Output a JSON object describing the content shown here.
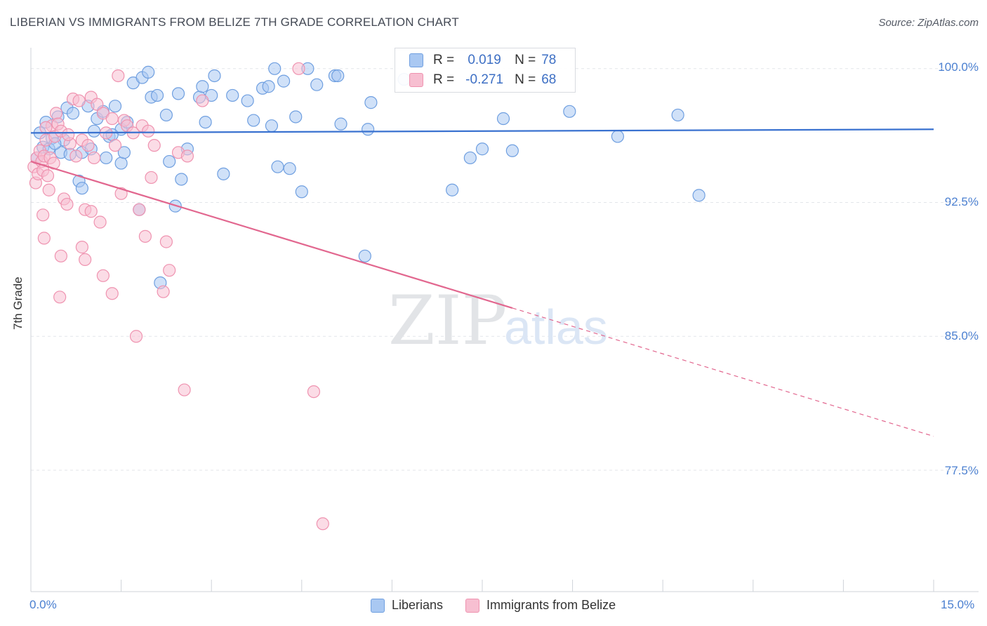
{
  "title": "LIBERIAN VS IMMIGRANTS FROM BELIZE 7TH GRADE CORRELATION CHART",
  "source": "Source: ZipAtlas.com",
  "watermark": {
    "zip": "ZIP",
    "atlas": "atlas"
  },
  "legend": {
    "r_label": "R =",
    "n_label": "N =",
    "rows": [
      {
        "r": "0.019",
        "n": "78",
        "color": "#a9c8f2"
      },
      {
        "r": "-0.271",
        "n": "68",
        "color": "#f7bfd1"
      }
    ]
  },
  "bottom_legend": [
    "Liberians",
    "Immigrants from Belize"
  ],
  "colors": {
    "blue_line": "#3a72d0",
    "pink_line": "#e2678f",
    "tick_text": "#4a7fd0"
  },
  "chart_data": {
    "type": "scatter",
    "title": "LIBERIAN VS IMMIGRANTS FROM BELIZE 7TH GRADE CORRELATION CHART",
    "ylabel": "7th Grade",
    "xlabel": "",
    "x_ticks": [
      "0.0%",
      "15.0%"
    ],
    "y_ticks": [
      "100.0%",
      "92.5%",
      "85.0%",
      "77.5%"
    ],
    "xlim": [
      0,
      15
    ],
    "ylim": [
      70.5,
      100.7
    ],
    "grid": true,
    "series": [
      {
        "name": "Liberians",
        "color": "#a9c8f2",
        "stroke": "#6f9fe0",
        "trend": {
          "x0": 0,
          "y0": 96.4,
          "x1": 15,
          "y1": 96.6,
          "solid_until": 15
        },
        "points": [
          [
            0.15,
            96.4
          ],
          [
            0.25,
            97.0
          ],
          [
            0.2,
            95.6
          ],
          [
            0.35,
            96.1
          ],
          [
            0.45,
            97.3
          ],
          [
            0.55,
            96.0
          ],
          [
            0.6,
            97.8
          ],
          [
            0.7,
            97.5
          ],
          [
            0.85,
            95.3
          ],
          [
            0.95,
            97.9
          ],
          [
            1.1,
            97.2
          ],
          [
            1.2,
            97.6
          ],
          [
            1.3,
            96.2
          ],
          [
            1.4,
            97.9
          ],
          [
            1.5,
            96.6
          ],
          [
            1.6,
            97.0
          ],
          [
            1.7,
            99.2
          ],
          [
            1.85,
            99.5
          ],
          [
            1.95,
            99.8
          ],
          [
            2.0,
            98.4
          ],
          [
            2.1,
            98.5
          ],
          [
            2.25,
            97.4
          ],
          [
            2.3,
            94.8
          ],
          [
            2.4,
            92.3
          ],
          [
            2.45,
            98.6
          ],
          [
            2.5,
            93.8
          ],
          [
            2.6,
            95.5
          ],
          [
            2.8,
            98.4
          ],
          [
            2.85,
            99.0
          ],
          [
            2.9,
            97.0
          ],
          [
            3.0,
            98.5
          ],
          [
            3.05,
            99.6
          ],
          [
            3.2,
            94.1
          ],
          [
            3.35,
            98.5
          ],
          [
            3.6,
            98.2
          ],
          [
            3.7,
            97.1
          ],
          [
            3.85,
            98.9
          ],
          [
            3.95,
            99.0
          ],
          [
            4.0,
            96.8
          ],
          [
            4.05,
            100.0
          ],
          [
            4.1,
            94.5
          ],
          [
            4.2,
            99.3
          ],
          [
            4.3,
            94.4
          ],
          [
            4.4,
            97.3
          ],
          [
            4.5,
            93.1
          ],
          [
            4.6,
            100.0
          ],
          [
            4.75,
            99.1
          ],
          [
            5.05,
            99.6
          ],
          [
            5.1,
            99.6
          ],
          [
            5.15,
            96.9
          ],
          [
            5.55,
            89.5
          ],
          [
            5.6,
            96.6
          ],
          [
            5.65,
            98.1
          ],
          [
            6.2,
            99.4
          ],
          [
            7.0,
            93.2
          ],
          [
            7.3,
            95.0
          ],
          [
            7.5,
            95.5
          ],
          [
            7.85,
            97.2
          ],
          [
            8.0,
            95.4
          ],
          [
            8.95,
            97.6
          ],
          [
            9.75,
            96.2
          ],
          [
            10.75,
            97.4
          ],
          [
            11.1,
            92.9
          ],
          [
            0.3,
            95.5
          ],
          [
            0.5,
            95.3
          ],
          [
            0.8,
            93.7
          ],
          [
            0.85,
            93.3
          ],
          [
            1.0,
            95.5
          ],
          [
            1.05,
            96.5
          ],
          [
            1.25,
            95.0
          ],
          [
            1.35,
            96.3
          ],
          [
            1.5,
            94.7
          ],
          [
            1.8,
            92.1
          ],
          [
            2.15,
            88.0
          ],
          [
            0.1,
            95.0
          ],
          [
            0.4,
            95.8
          ],
          [
            0.65,
            95.2
          ],
          [
            1.55,
            95.3
          ]
        ]
      },
      {
        "name": "Immigrants from Belize",
        "color": "#f7bfd1",
        "stroke": "#ef93b0",
        "trend": {
          "x0": 0,
          "y0": 94.8,
          "x1": 15,
          "y1": 79.4,
          "solid_until": 8.0
        },
        "points": [
          [
            0.05,
            94.5
          ],
          [
            0.08,
            93.6
          ],
          [
            0.1,
            95.0
          ],
          [
            0.12,
            94.1
          ],
          [
            0.15,
            95.4
          ],
          [
            0.18,
            94.8
          ],
          [
            0.2,
            94.3
          ],
          [
            0.22,
            95.1
          ],
          [
            0.25,
            96.0
          ],
          [
            0.28,
            94.0
          ],
          [
            0.3,
            93.2
          ],
          [
            0.32,
            95.0
          ],
          [
            0.35,
            96.8
          ],
          [
            0.38,
            94.7
          ],
          [
            0.4,
            96.2
          ],
          [
            0.42,
            97.5
          ],
          [
            0.45,
            96.9
          ],
          [
            0.5,
            96.5
          ],
          [
            0.55,
            92.7
          ],
          [
            0.6,
            92.4
          ],
          [
            0.65,
            95.8
          ],
          [
            0.7,
            98.3
          ],
          [
            0.75,
            95.1
          ],
          [
            0.8,
            98.2
          ],
          [
            0.85,
            96.0
          ],
          [
            0.9,
            92.1
          ],
          [
            0.95,
            95.7
          ],
          [
            1.0,
            98.4
          ],
          [
            1.05,
            95.0
          ],
          [
            1.1,
            98.0
          ],
          [
            1.15,
            91.4
          ],
          [
            1.2,
            97.5
          ],
          [
            1.25,
            96.4
          ],
          [
            1.35,
            97.2
          ],
          [
            1.4,
            95.7
          ],
          [
            1.45,
            99.6
          ],
          [
            1.5,
            93.0
          ],
          [
            1.55,
            97.1
          ],
          [
            1.6,
            96.8
          ],
          [
            1.7,
            96.4
          ],
          [
            1.75,
            85.0
          ],
          [
            1.8,
            92.1
          ],
          [
            1.85,
            96.8
          ],
          [
            1.9,
            90.6
          ],
          [
            1.95,
            96.5
          ],
          [
            2.0,
            93.9
          ],
          [
            2.05,
            95.7
          ],
          [
            2.2,
            87.5
          ],
          [
            2.25,
            90.3
          ],
          [
            2.3,
            88.7
          ],
          [
            2.45,
            95.3
          ],
          [
            2.55,
            82.0
          ],
          [
            2.6,
            95.1
          ],
          [
            2.85,
            98.2
          ],
          [
            4.45,
            100.0
          ],
          [
            4.7,
            81.9
          ],
          [
            4.85,
            74.5
          ],
          [
            0.2,
            91.8
          ],
          [
            0.22,
            90.5
          ],
          [
            0.5,
            89.5
          ],
          [
            0.85,
            90.0
          ],
          [
            0.9,
            89.3
          ],
          [
            1.2,
            88.4
          ],
          [
            1.35,
            87.4
          ],
          [
            0.48,
            87.2
          ],
          [
            0.62,
            96.3
          ],
          [
            1.0,
            92.0
          ],
          [
            0.25,
            96.7
          ]
        ]
      }
    ]
  }
}
